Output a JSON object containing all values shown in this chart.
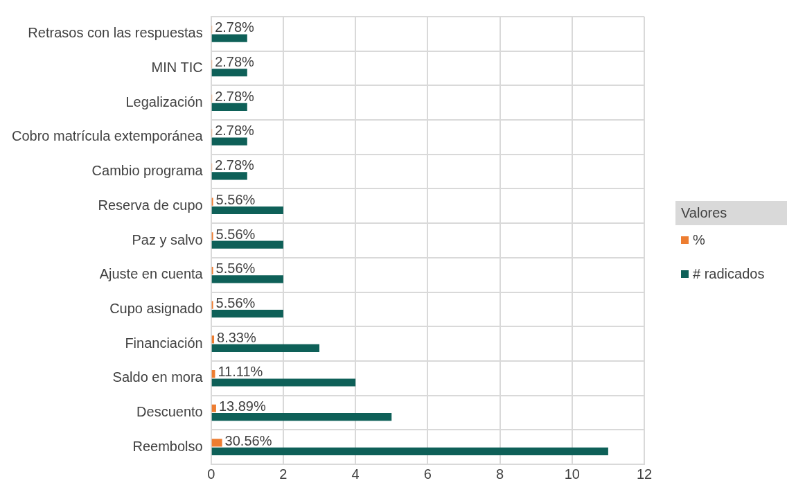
{
  "chart_data": {
    "type": "bar",
    "orientation": "horizontal",
    "categories": [
      "Retrasos con las respuestas",
      "MIN TIC",
      "Legalización",
      "Cobro matrícula extemporánea",
      "Cambio programa",
      "Reserva de cupo",
      "Paz y salvo",
      "Ajuste en cuenta",
      "Cupo asignado",
      "Financiación",
      "Saldo en mora",
      "Descuento",
      "Reembolso"
    ],
    "series": [
      {
        "name": "%",
        "color": "#ed7d31",
        "values": [
          0.0278,
          0.0278,
          0.0278,
          0.0278,
          0.0278,
          0.0556,
          0.0556,
          0.0556,
          0.0556,
          0.0833,
          0.1111,
          0.1389,
          0.3056
        ],
        "value_labels": [
          "2.78%",
          "2.78%",
          "2.78%",
          "2.78%",
          "2.78%",
          "5.56%",
          "5.56%",
          "5.56%",
          "5.56%",
          "8.33%",
          "11.11%",
          "13.89%",
          "30.56%"
        ]
      },
      {
        "name": "# radicados",
        "color": "#0e6058",
        "values": [
          1,
          1,
          1,
          1,
          1,
          2,
          2,
          2,
          2,
          3,
          4,
          5,
          11
        ]
      }
    ],
    "xlim": [
      0,
      12
    ],
    "xticks": [
      0,
      2,
      4,
      6,
      8,
      10,
      12
    ],
    "grid": true,
    "legend": "right",
    "legend_title": "Valores"
  }
}
